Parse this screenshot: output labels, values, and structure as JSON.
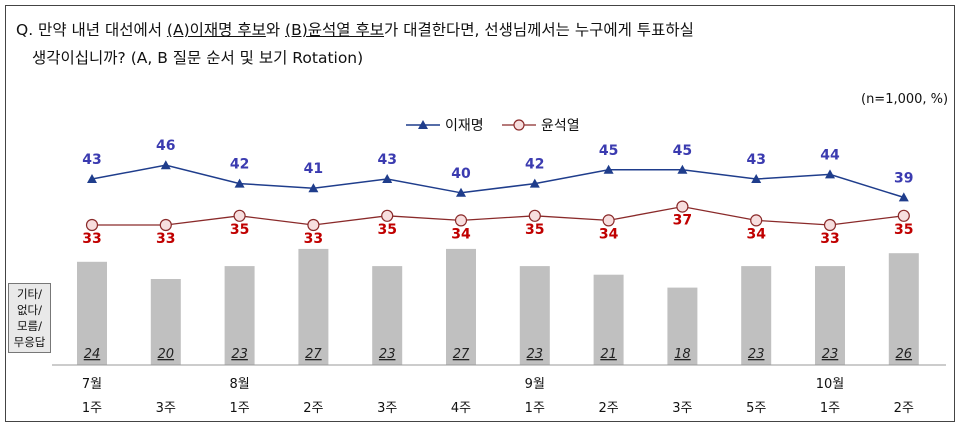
{
  "question": {
    "prefix": "Q. 만약 내년 대선에서 ",
    "candidate_a": "(A)이재명 후보",
    "middle": "와 ",
    "candidate_b": "(B)윤석열 후보",
    "suffix": "가 대결한다면, 선생님께서는 누구에게 투표하실",
    "line2": "생각이십니까? (A, B 질문 순서 및 보기 Rotation)"
  },
  "note": "(n=1,000,  %)",
  "other_label": [
    "기타/",
    "없다/",
    "모름/",
    "무응답"
  ],
  "colors": {
    "lee": "#1f3d8c",
    "lee_label": "#3b3bb0",
    "yoon": "#8a2a2a",
    "yoon_label": "#c00000",
    "bar": "#c0c0c0"
  },
  "chart_data": {
    "type": "line",
    "categories": [
      "7월 1주",
      "7월 3주",
      "8월 1주",
      "8월 2주",
      "8월 3주",
      "8월 4주",
      "9월 1주",
      "9월 2주",
      "9월 3주",
      "9월 5주",
      "10월 1주",
      "10월 2주"
    ],
    "x_month_labels": [
      "7월",
      "",
      "8월",
      "",
      "",
      "",
      "9월",
      "",
      "",
      "",
      "10월",
      ""
    ],
    "x_week_labels": [
      "1주",
      "3주",
      "1주",
      "2주",
      "3주",
      "4주",
      "1주",
      "2주",
      "3주",
      "5주",
      "1주",
      "2주"
    ],
    "series": [
      {
        "name": "이재명",
        "values": [
          43,
          46,
          42,
          41,
          43,
          40,
          42,
          45,
          45,
          43,
          44,
          39
        ],
        "marker": "triangle"
      },
      {
        "name": "윤석열",
        "values": [
          33,
          33,
          35,
          33,
          35,
          34,
          35,
          34,
          37,
          34,
          33,
          35
        ],
        "marker": "circle"
      }
    ],
    "bar_series": {
      "name": "기타/없다/모름/무응답",
      "values": [
        24,
        20,
        23,
        27,
        23,
        27,
        23,
        21,
        18,
        23,
        23,
        26
      ]
    },
    "legend_position": "top-center"
  }
}
